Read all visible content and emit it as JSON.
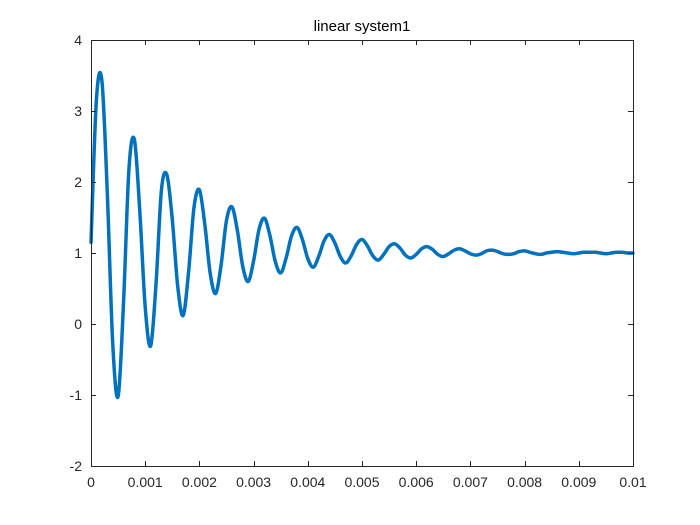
{
  "chart_data": {
    "type": "line",
    "title": "linear system1",
    "xlabel": "",
    "ylabel": "",
    "xlim": [
      0,
      0.01
    ],
    "ylim": [
      -2,
      4
    ],
    "x_ticks": [
      0,
      0.001,
      0.002,
      0.003,
      0.004,
      0.005,
      0.006,
      0.007,
      0.008,
      0.009,
      0.01
    ],
    "x_tick_labels": [
      "0",
      "0.001",
      "0.002",
      "0.003",
      "0.004",
      "0.005",
      "0.006",
      "0.007",
      "0.008",
      "0.009",
      "0.01"
    ],
    "y_ticks": [
      -2,
      -1,
      0,
      1,
      2,
      3,
      4
    ],
    "y_tick_labels": [
      "-2",
      "-1",
      "0",
      "1",
      "2",
      "3",
      "4"
    ],
    "grid": false,
    "legend": "none",
    "series": [
      {
        "color": "#0072BD",
        "x": [
          0,
          0.0001,
          0.0002,
          0.0003,
          0.0004,
          0.0005,
          0.0006,
          0.0007,
          0.0008,
          0.0009,
          0.001,
          0.0011,
          0.0012,
          0.0013,
          0.0014,
          0.0015,
          0.0016,
          0.0017,
          0.0018,
          0.0019,
          0.002,
          0.0021,
          0.0022,
          0.0023,
          0.0024,
          0.0025,
          0.0026,
          0.0027,
          0.0028,
          0.0029,
          0.003,
          0.0031,
          0.0032,
          0.0033,
          0.0034,
          0.0035,
          0.0036,
          0.0037,
          0.0038,
          0.0039,
          0.004,
          0.0041,
          0.0042,
          0.0043,
          0.0044,
          0.0045,
          0.0046,
          0.0047,
          0.0048,
          0.0049,
          0.005,
          0.0051,
          0.0052,
          0.0053,
          0.0054,
          0.0055,
          0.0056,
          0.0057,
          0.0058,
          0.0059,
          0.006,
          0.0061,
          0.0062,
          0.0063,
          0.0064,
          0.0065,
          0.0066,
          0.0067,
          0.0068,
          0.0069,
          0.007,
          0.0071,
          0.0072,
          0.0073,
          0.0074,
          0.0075,
          0.0076,
          0.0077,
          0.0078,
          0.0079,
          0.008,
          0.0081,
          0.0082,
          0.0083,
          0.0084,
          0.0085,
          0.0086,
          0.0087,
          0.0088,
          0.0089,
          0.009,
          0.0091,
          0.0092,
          0.0093,
          0.0094,
          0.0095,
          0.0096,
          0.0097,
          0.0098,
          0.0099,
          0.01
        ],
        "y": [
          1.15,
          3.16,
          3.43,
          1.86,
          -0.26,
          -1.02,
          0.3,
          2.18,
          2.6,
          1.59,
          0.24,
          -0.31,
          0.57,
          1.89,
          2.1,
          1.47,
          0.53,
          0.12,
          0.73,
          1.64,
          1.89,
          1.4,
          0.71,
          0.43,
          0.83,
          1.46,
          1.65,
          1.32,
          0.81,
          0.6,
          0.89,
          1.33,
          1.49,
          1.25,
          0.88,
          0.72,
          0.93,
          1.24,
          1.36,
          1.19,
          0.92,
          0.8,
          0.95,
          1.17,
          1.26,
          1.14,
          0.95,
          0.86,
          0.96,
          1.12,
          1.19,
          1.1,
          0.96,
          0.9,
          0.98,
          1.09,
          1.13,
          1.07,
          0.97,
          0.93,
          0.98,
          1.06,
          1.09,
          1.05,
          0.98,
          0.95,
          0.99,
          1.04,
          1.06,
          1.03,
          0.99,
          0.97,
          0.99,
          1.03,
          1.04,
          1.02,
          0.99,
          0.98,
          0.99,
          1.02,
          1.03,
          1.01,
          0.99,
          0.98,
          1,
          1.01,
          1.02,
          1.01,
          1,
          0.99,
          1,
          1.01,
          1.01,
          1.01,
          1,
          0.99,
          1,
          1.01,
          1.01,
          1,
          1
        ]
      }
    ]
  }
}
